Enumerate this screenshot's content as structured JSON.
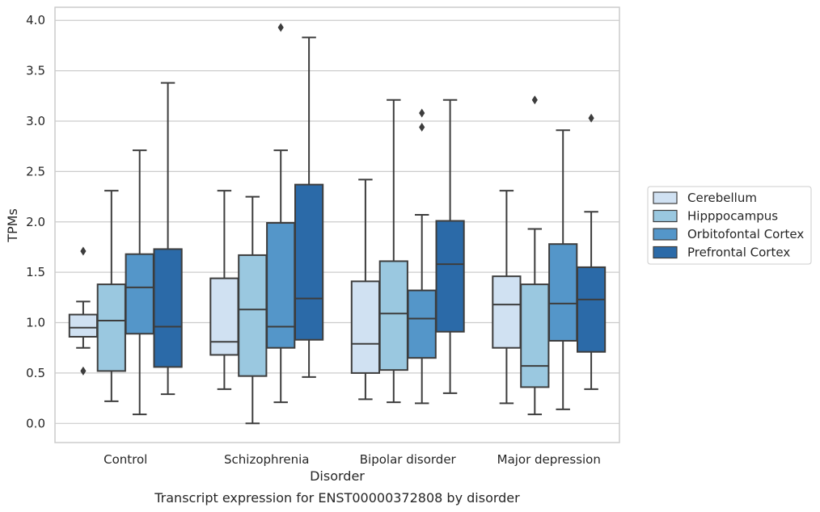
{
  "chart_data": {
    "type": "box",
    "categories": [
      "Control",
      "Schizophrenia",
      "Bipolar disorder",
      "Major depression"
    ],
    "xlabel": "Disorder",
    "ylabel": "TPMs",
    "caption": "Transcript expression for ENST00000372808 by disorder",
    "ylim": [
      -0.19,
      4.13
    ],
    "yticks": [
      "0.0",
      "0.5",
      "1.0",
      "1.5",
      "2.0",
      "2.5",
      "3.0",
      "3.5",
      "4.0"
    ],
    "grid": true,
    "legend_position": "right",
    "series": [
      {
        "name": "Cerebellum",
        "color": "#d0e1f2",
        "boxes": [
          {
            "min": 0.75,
            "q1": 0.86,
            "median": 0.95,
            "q3": 1.08,
            "max": 1.21,
            "outliers": [
              1.71,
              0.52
            ]
          },
          {
            "min": 0.34,
            "q1": 0.68,
            "median": 0.81,
            "q3": 1.44,
            "max": 2.31,
            "outliers": []
          },
          {
            "min": 0.24,
            "q1": 0.5,
            "median": 0.79,
            "q3": 1.41,
            "max": 2.42,
            "outliers": []
          },
          {
            "min": 0.2,
            "q1": 0.75,
            "median": 1.18,
            "q3": 1.46,
            "max": 2.31,
            "outliers": []
          }
        ]
      },
      {
        "name": "Hipppocampus",
        "color": "#9ac8e0",
        "boxes": [
          {
            "min": 0.22,
            "q1": 0.52,
            "median": 1.02,
            "q3": 1.38,
            "max": 2.31,
            "outliers": []
          },
          {
            "min": 0.0,
            "q1": 0.47,
            "median": 1.13,
            "q3": 1.67,
            "max": 2.25,
            "outliers": []
          },
          {
            "min": 0.21,
            "q1": 0.53,
            "median": 1.09,
            "q3": 1.61,
            "max": 3.21,
            "outliers": []
          },
          {
            "min": 0.09,
            "q1": 0.36,
            "median": 0.57,
            "q3": 1.38,
            "max": 1.93,
            "outliers": [
              3.21
            ]
          }
        ]
      },
      {
        "name": "Orbitofontal Cortex",
        "color": "#5496c9",
        "boxes": [
          {
            "min": 0.09,
            "q1": 0.89,
            "median": 1.35,
            "q3": 1.68,
            "max": 2.71,
            "outliers": []
          },
          {
            "min": 0.21,
            "q1": 0.75,
            "median": 0.96,
            "q3": 1.99,
            "max": 2.71,
            "outliers": [
              3.93
            ]
          },
          {
            "min": 0.2,
            "q1": 0.65,
            "median": 1.04,
            "q3": 1.32,
            "max": 2.07,
            "outliers": [
              3.08,
              2.94
            ]
          },
          {
            "min": 0.14,
            "q1": 0.82,
            "median": 1.19,
            "q3": 1.78,
            "max": 2.91,
            "outliers": []
          }
        ]
      },
      {
        "name": "Prefrontal Cortex",
        "color": "#2b6aa8",
        "boxes": [
          {
            "min": 0.29,
            "q1": 0.56,
            "median": 0.96,
            "q3": 1.73,
            "max": 3.38,
            "outliers": []
          },
          {
            "min": 0.46,
            "q1": 0.83,
            "median": 1.24,
            "q3": 2.37,
            "max": 3.83,
            "outliers": []
          },
          {
            "min": 0.3,
            "q1": 0.91,
            "median": 1.58,
            "q3": 2.01,
            "max": 3.21,
            "outliers": []
          },
          {
            "min": 0.34,
            "q1": 0.71,
            "median": 1.23,
            "q3": 1.55,
            "max": 2.1,
            "outliers": [
              3.03
            ]
          }
        ]
      }
    ]
  }
}
